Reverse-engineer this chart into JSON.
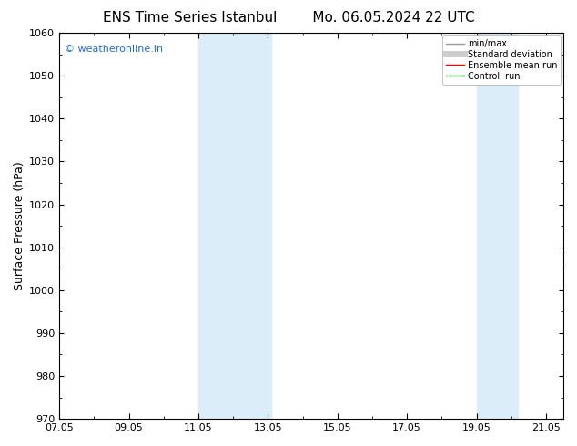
{
  "title": "ENS Time Series Istanbul",
  "title2": "Mo. 06.05.2024 22 UTC",
  "ylabel": "Surface Pressure (hPa)",
  "ylim": [
    970,
    1060
  ],
  "yticks": [
    970,
    980,
    990,
    1000,
    1010,
    1020,
    1030,
    1040,
    1050,
    1060
  ],
  "xlim_start": 0.0,
  "xlim_end": 14.5,
  "xtick_positions": [
    0,
    2,
    4,
    6,
    8,
    10,
    12,
    14
  ],
  "xtick_labels": [
    "07.05",
    "09.05",
    "11.05",
    "13.05",
    "15.05",
    "17.05",
    "19.05",
    "21.05"
  ],
  "shaded_bands": [
    {
      "xstart": 4.0,
      "xend": 6.1
    },
    {
      "xstart": 12.0,
      "xend": 13.2
    }
  ],
  "shade_color": "#daedf8",
  "legend_items": [
    {
      "label": "min/max",
      "color": "#999999",
      "lw": 1.0
    },
    {
      "label": "Standard deviation",
      "color": "#cccccc",
      "lw": 5
    },
    {
      "label": "Ensemble mean run",
      "color": "red",
      "lw": 1.0
    },
    {
      "label": "Controll run",
      "color": "green",
      "lw": 1.0
    }
  ],
  "watermark": "© weatheronline.in",
  "watermark_color": "#1a6fd4",
  "bg_color": "#ffffff",
  "plot_bg_color": "#ffffff",
  "border_color": "#000000",
  "title_fontsize": 11,
  "tick_fontsize": 8,
  "ylabel_fontsize": 9
}
